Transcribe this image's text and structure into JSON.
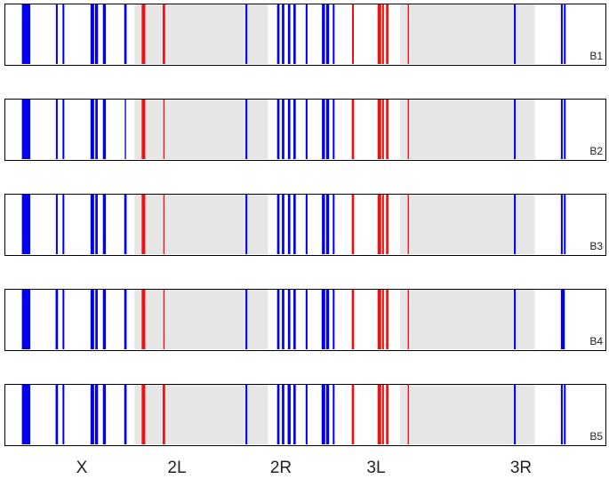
{
  "chart_data": {
    "type": "barcode",
    "title": "",
    "xlabel": "",
    "ylabel": "",
    "x_categories": [
      "X",
      "2L",
      "2R",
      "3L",
      "3R"
    ],
    "shaded_regions": [
      {
        "name": "2L",
        "range": [
          0.216,
          0.438
        ]
      },
      {
        "name": "3L",
        "range": [
          0.657,
          0.881
        ]
      }
    ],
    "colors": {
      "blue": "#0000ee",
      "red": "#ee1111",
      "shade": "#e6e6e6",
      "frame": "#000000"
    },
    "panels": [
      {
        "label": "B1",
        "marks": [
          {
            "x": 0.033,
            "w": 0.008,
            "color": "blue"
          },
          {
            "x": 0.036,
            "w": 0.008,
            "color": "blue"
          },
          {
            "x": 0.039,
            "w": 0.008,
            "color": "blue"
          },
          {
            "x": 0.087,
            "w": 0.003,
            "color": "blue"
          },
          {
            "x": 0.098,
            "w": 0.003,
            "color": "blue"
          },
          {
            "x": 0.146,
            "w": 0.006,
            "color": "blue"
          },
          {
            "x": 0.153,
            "w": 0.005,
            "color": "blue"
          },
          {
            "x": 0.166,
            "w": 0.005,
            "color": "blue"
          },
          {
            "x": 0.201,
            "w": 0.004,
            "color": "blue"
          },
          {
            "x": 0.231,
            "w": 0.006,
            "color": "red"
          },
          {
            "x": 0.265,
            "w": 0.004,
            "color": "red"
          },
          {
            "x": 0.402,
            "w": 0.003,
            "color": "blue"
          },
          {
            "x": 0.455,
            "w": 0.004,
            "color": "blue"
          },
          {
            "x": 0.463,
            "w": 0.004,
            "color": "blue"
          },
          {
            "x": 0.473,
            "w": 0.004,
            "color": "blue"
          },
          {
            "x": 0.482,
            "w": 0.004,
            "color": "blue"
          },
          {
            "x": 0.502,
            "w": 0.003,
            "color": "blue"
          },
          {
            "x": 0.53,
            "w": 0.005,
            "color": "blue"
          },
          {
            "x": 0.537,
            "w": 0.005,
            "color": "blue"
          },
          {
            "x": 0.547,
            "w": 0.003,
            "color": "blue"
          },
          {
            "x": 0.579,
            "w": 0.003,
            "color": "red"
          },
          {
            "x": 0.623,
            "w": 0.006,
            "color": "red"
          },
          {
            "x": 0.629,
            "w": 0.003,
            "color": "red"
          },
          {
            "x": 0.636,
            "w": 0.004,
            "color": "red"
          },
          {
            "x": 0.671,
            "w": 0.002,
            "color": "red"
          },
          {
            "x": 0.848,
            "w": 0.003,
            "color": "blue"
          },
          {
            "x": 0.926,
            "w": 0.003,
            "color": "blue"
          },
          {
            "x": 0.931,
            "w": 0.003,
            "color": "blue"
          }
        ]
      },
      {
        "label": "B2",
        "marks": [
          {
            "x": 0.033,
            "w": 0.008,
            "color": "blue"
          },
          {
            "x": 0.036,
            "w": 0.008,
            "color": "blue"
          },
          {
            "x": 0.039,
            "w": 0.008,
            "color": "blue"
          },
          {
            "x": 0.087,
            "w": 0.003,
            "color": "blue"
          },
          {
            "x": 0.098,
            "w": 0.003,
            "color": "blue"
          },
          {
            "x": 0.146,
            "w": 0.006,
            "color": "blue"
          },
          {
            "x": 0.153,
            "w": 0.004,
            "color": "blue"
          },
          {
            "x": 0.166,
            "w": 0.005,
            "color": "blue"
          },
          {
            "x": 0.201,
            "w": 0.002,
            "color": "blue"
          },
          {
            "x": 0.231,
            "w": 0.006,
            "color": "red"
          },
          {
            "x": 0.265,
            "w": 0.002,
            "color": "red"
          },
          {
            "x": 0.402,
            "w": 0.003,
            "color": "blue"
          },
          {
            "x": 0.455,
            "w": 0.004,
            "color": "blue"
          },
          {
            "x": 0.463,
            "w": 0.004,
            "color": "blue"
          },
          {
            "x": 0.473,
            "w": 0.004,
            "color": "blue"
          },
          {
            "x": 0.482,
            "w": 0.004,
            "color": "blue"
          },
          {
            "x": 0.502,
            "w": 0.003,
            "color": "blue"
          },
          {
            "x": 0.53,
            "w": 0.005,
            "color": "blue"
          },
          {
            "x": 0.537,
            "w": 0.005,
            "color": "blue"
          },
          {
            "x": 0.547,
            "w": 0.003,
            "color": "blue"
          },
          {
            "x": 0.579,
            "w": 0.004,
            "color": "red"
          },
          {
            "x": 0.623,
            "w": 0.006,
            "color": "red"
          },
          {
            "x": 0.629,
            "w": 0.003,
            "color": "red"
          },
          {
            "x": 0.636,
            "w": 0.004,
            "color": "red"
          },
          {
            "x": 0.671,
            "w": 0.002,
            "color": "red"
          },
          {
            "x": 0.848,
            "w": 0.003,
            "color": "blue"
          },
          {
            "x": 0.926,
            "w": 0.003,
            "color": "blue"
          },
          {
            "x": 0.931,
            "w": 0.003,
            "color": "blue"
          }
        ]
      },
      {
        "label": "B3",
        "marks": [
          {
            "x": 0.033,
            "w": 0.008,
            "color": "blue"
          },
          {
            "x": 0.036,
            "w": 0.008,
            "color": "blue"
          },
          {
            "x": 0.039,
            "w": 0.008,
            "color": "blue"
          },
          {
            "x": 0.087,
            "w": 0.003,
            "color": "blue"
          },
          {
            "x": 0.098,
            "w": 0.003,
            "color": "blue"
          },
          {
            "x": 0.146,
            "w": 0.006,
            "color": "blue"
          },
          {
            "x": 0.153,
            "w": 0.004,
            "color": "blue"
          },
          {
            "x": 0.166,
            "w": 0.005,
            "color": "blue"
          },
          {
            "x": 0.201,
            "w": 0.004,
            "color": "blue"
          },
          {
            "x": 0.231,
            "w": 0.006,
            "color": "red"
          },
          {
            "x": 0.265,
            "w": 0.002,
            "color": "red"
          },
          {
            "x": 0.402,
            "w": 0.003,
            "color": "blue"
          },
          {
            "x": 0.455,
            "w": 0.004,
            "color": "blue"
          },
          {
            "x": 0.463,
            "w": 0.004,
            "color": "blue"
          },
          {
            "x": 0.473,
            "w": 0.004,
            "color": "blue"
          },
          {
            "x": 0.482,
            "w": 0.004,
            "color": "blue"
          },
          {
            "x": 0.502,
            "w": 0.003,
            "color": "blue"
          },
          {
            "x": 0.53,
            "w": 0.005,
            "color": "blue"
          },
          {
            "x": 0.537,
            "w": 0.005,
            "color": "blue"
          },
          {
            "x": 0.547,
            "w": 0.003,
            "color": "blue"
          },
          {
            "x": 0.579,
            "w": 0.004,
            "color": "red"
          },
          {
            "x": 0.623,
            "w": 0.006,
            "color": "red"
          },
          {
            "x": 0.629,
            "w": 0.003,
            "color": "red"
          },
          {
            "x": 0.636,
            "w": 0.004,
            "color": "red"
          },
          {
            "x": 0.671,
            "w": 0.002,
            "color": "red"
          },
          {
            "x": 0.848,
            "w": 0.003,
            "color": "blue"
          },
          {
            "x": 0.926,
            "w": 0.003,
            "color": "blue"
          },
          {
            "x": 0.931,
            "w": 0.003,
            "color": "blue"
          }
        ]
      },
      {
        "label": "B4",
        "marks": [
          {
            "x": 0.033,
            "w": 0.008,
            "color": "blue"
          },
          {
            "x": 0.036,
            "w": 0.008,
            "color": "blue"
          },
          {
            "x": 0.039,
            "w": 0.008,
            "color": "blue"
          },
          {
            "x": 0.087,
            "w": 0.004,
            "color": "blue"
          },
          {
            "x": 0.098,
            "w": 0.003,
            "color": "blue"
          },
          {
            "x": 0.146,
            "w": 0.006,
            "color": "blue"
          },
          {
            "x": 0.153,
            "w": 0.004,
            "color": "blue"
          },
          {
            "x": 0.166,
            "w": 0.005,
            "color": "blue"
          },
          {
            "x": 0.201,
            "w": 0.004,
            "color": "blue"
          },
          {
            "x": 0.231,
            "w": 0.006,
            "color": "red"
          },
          {
            "x": 0.265,
            "w": 0.002,
            "color": "red"
          },
          {
            "x": 0.402,
            "w": 0.003,
            "color": "blue"
          },
          {
            "x": 0.455,
            "w": 0.004,
            "color": "blue"
          },
          {
            "x": 0.463,
            "w": 0.004,
            "color": "blue"
          },
          {
            "x": 0.473,
            "w": 0.004,
            "color": "blue"
          },
          {
            "x": 0.482,
            "w": 0.004,
            "color": "blue"
          },
          {
            "x": 0.502,
            "w": 0.003,
            "color": "blue"
          },
          {
            "x": 0.53,
            "w": 0.006,
            "color": "blue"
          },
          {
            "x": 0.537,
            "w": 0.005,
            "color": "blue"
          },
          {
            "x": 0.547,
            "w": 0.003,
            "color": "blue"
          },
          {
            "x": 0.579,
            "w": 0.004,
            "color": "red"
          },
          {
            "x": 0.623,
            "w": 0.006,
            "color": "red"
          },
          {
            "x": 0.629,
            "w": 0.003,
            "color": "red"
          },
          {
            "x": 0.636,
            "w": 0.004,
            "color": "red"
          },
          {
            "x": 0.671,
            "w": 0.002,
            "color": "red"
          },
          {
            "x": 0.848,
            "w": 0.003,
            "color": "blue"
          },
          {
            "x": 0.926,
            "w": 0.003,
            "color": "blue"
          },
          {
            "x": 0.929,
            "w": 0.004,
            "color": "blue"
          }
        ]
      },
      {
        "label": "B5",
        "marks": [
          {
            "x": 0.033,
            "w": 0.008,
            "color": "blue"
          },
          {
            "x": 0.036,
            "w": 0.008,
            "color": "blue"
          },
          {
            "x": 0.039,
            "w": 0.008,
            "color": "blue"
          },
          {
            "x": 0.087,
            "w": 0.004,
            "color": "blue"
          },
          {
            "x": 0.098,
            "w": 0.003,
            "color": "blue"
          },
          {
            "x": 0.146,
            "w": 0.006,
            "color": "blue"
          },
          {
            "x": 0.153,
            "w": 0.005,
            "color": "blue"
          },
          {
            "x": 0.166,
            "w": 0.005,
            "color": "blue"
          },
          {
            "x": 0.201,
            "w": 0.004,
            "color": "blue"
          },
          {
            "x": 0.231,
            "w": 0.006,
            "color": "red"
          },
          {
            "x": 0.265,
            "w": 0.004,
            "color": "red"
          },
          {
            "x": 0.402,
            "w": 0.003,
            "color": "blue"
          },
          {
            "x": 0.455,
            "w": 0.004,
            "color": "blue"
          },
          {
            "x": 0.463,
            "w": 0.004,
            "color": "blue"
          },
          {
            "x": 0.473,
            "w": 0.005,
            "color": "blue"
          },
          {
            "x": 0.482,
            "w": 0.004,
            "color": "blue"
          },
          {
            "x": 0.502,
            "w": 0.003,
            "color": "blue"
          },
          {
            "x": 0.53,
            "w": 0.006,
            "color": "blue"
          },
          {
            "x": 0.537,
            "w": 0.005,
            "color": "blue"
          },
          {
            "x": 0.547,
            "w": 0.003,
            "color": "blue"
          },
          {
            "x": 0.579,
            "w": 0.004,
            "color": "red"
          },
          {
            "x": 0.623,
            "w": 0.006,
            "color": "red"
          },
          {
            "x": 0.629,
            "w": 0.003,
            "color": "red"
          },
          {
            "x": 0.636,
            "w": 0.004,
            "color": "red"
          },
          {
            "x": 0.671,
            "w": 0.002,
            "color": "red"
          },
          {
            "x": 0.848,
            "w": 0.003,
            "color": "blue"
          },
          {
            "x": 0.926,
            "w": 0.003,
            "color": "blue"
          },
          {
            "x": 0.931,
            "w": 0.003,
            "color": "blue"
          }
        ]
      }
    ]
  }
}
